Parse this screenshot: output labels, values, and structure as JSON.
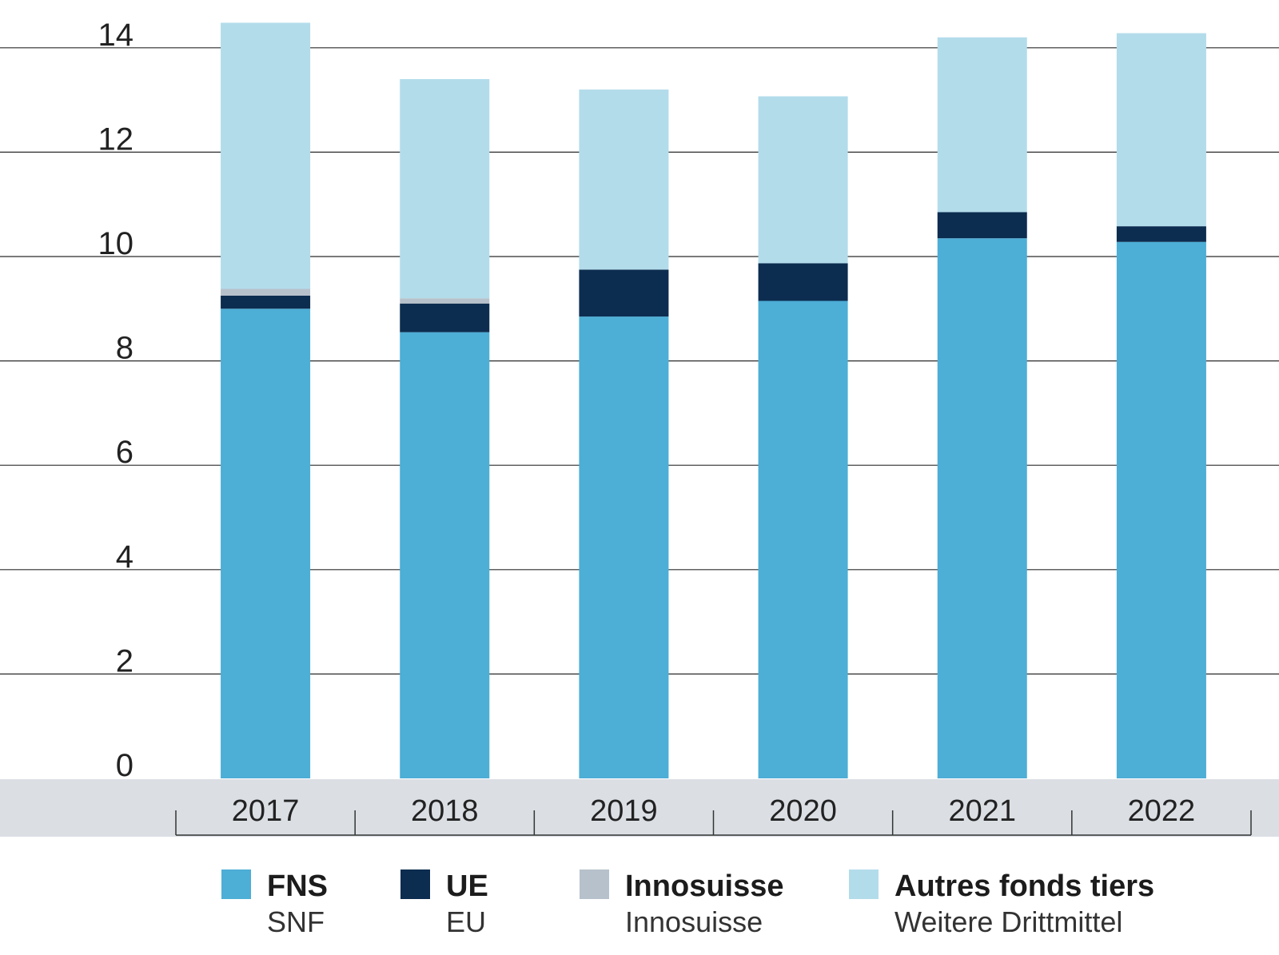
{
  "chart_data": {
    "type": "bar",
    "stacked": true,
    "categories": [
      "2017",
      "2018",
      "2019",
      "2020",
      "2021",
      "2022"
    ],
    "series": [
      {
        "name": "FNS",
        "subname": "SNF",
        "color": "#4daed6",
        "values": [
          9.0,
          8.55,
          8.85,
          9.15,
          10.35,
          10.28
        ]
      },
      {
        "name": "UE",
        "subname": "EU",
        "color": "#0c2d50",
        "values": [
          0.25,
          0.55,
          0.9,
          0.72,
          0.5,
          0.3
        ]
      },
      {
        "name": "Innosuisse",
        "subname": "Innosuisse",
        "color": "#b7c1cb",
        "values": [
          0.13,
          0.1,
          0.0,
          0.0,
          0.0,
          0.0
        ]
      },
      {
        "name": "Autres fonds tiers",
        "subname": "Weitere Drittmittel",
        "color": "#b3dceb",
        "values": [
          5.1,
          4.2,
          3.45,
          3.2,
          3.35,
          3.7
        ]
      }
    ],
    "yticks": [
      "0",
      "2",
      "4",
      "6",
      "8",
      "10",
      "12",
      "14"
    ],
    "ylim": [
      0,
      14.5
    ],
    "grid": true,
    "legend_position": "bottom",
    "title": "",
    "xlabel": "",
    "ylabel": ""
  }
}
